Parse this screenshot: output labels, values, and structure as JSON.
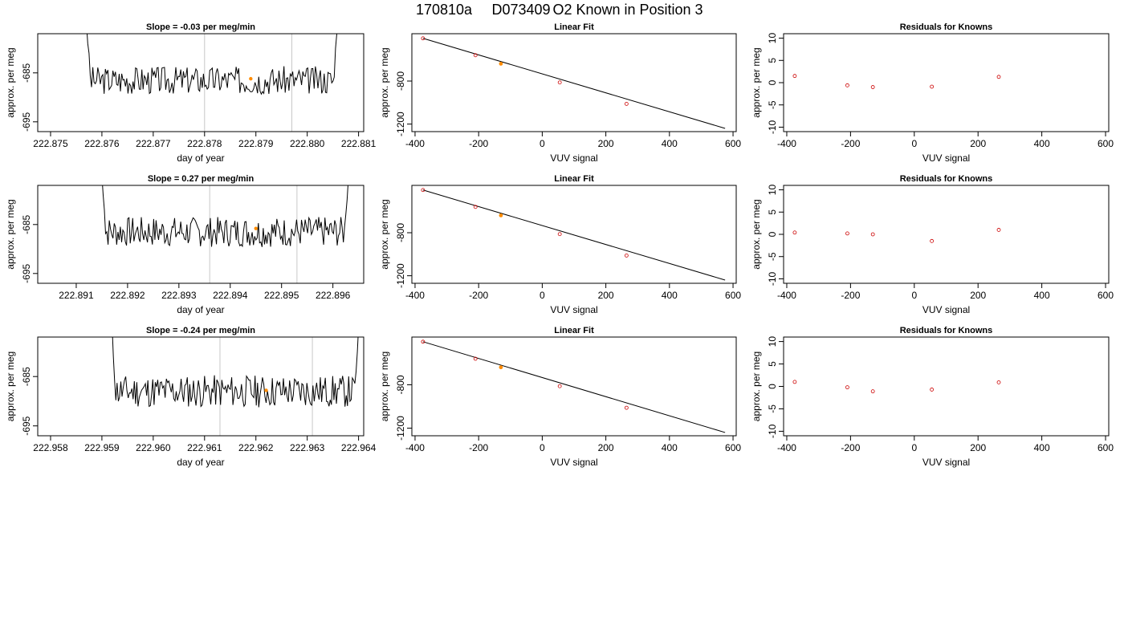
{
  "figure": {
    "title_run": "170810a",
    "title_id": "D073409",
    "title_desc": "O2 Known in Position  3"
  },
  "colors": {
    "trace": "#000000",
    "vline": "#c8c8c8",
    "known_point": "#cc0000",
    "highlight_point": "#ff8c00",
    "frame": "#000000"
  },
  "chart_data": [
    {
      "type": "line",
      "title": "Slope =  -0.03  per meg/min",
      "xlabel": "day of year",
      "ylabel": "approx. per meg",
      "xlim": [
        222.87475,
        222.8811
      ],
      "ylim": [
        -697.0,
        -677.0
      ],
      "x_ticks": [
        "222.875",
        "222.876",
        "222.877",
        "222.878",
        "222.879",
        "222.880",
        "222.881"
      ],
      "x_tick_values": [
        222.875,
        222.876,
        222.877,
        222.878,
        222.879,
        222.88,
        222.881
      ],
      "y_ticks": [
        "-685",
        "-695"
      ],
      "y_tick_values": [
        -685,
        -695
      ],
      "vlines": [
        222.878,
        222.8797
      ],
      "trace": {
        "x_start": 222.8757,
        "x_end": 222.8806,
        "lead_in": [
          -675,
          -679,
          -681
        ],
        "lead_out": [
          -680,
          -677,
          -675
        ],
        "amplitude": 1.3,
        "level": -686.5,
        "seed": 3
      },
      "marker": {
        "x": 222.8789,
        "y": -686.2
      }
    },
    {
      "type": "scatter",
      "title": "Linear Fit",
      "xlabel": "VUV signal",
      "ylabel": "approx. per meg",
      "xlim": [
        -410,
        610
      ],
      "ylim": [
        -1270,
        -360
      ],
      "x_ticks": [
        "-400",
        "-200",
        "0",
        "200",
        "400",
        "600"
      ],
      "x_tick_values": [
        -400,
        -200,
        0,
        200,
        400,
        600
      ],
      "y_ticks": [
        "-800",
        "-1200"
      ],
      "y_tick_values": [
        -800,
        -1200
      ],
      "points": [
        {
          "x": -375,
          "y": -403
        },
        {
          "x": -210,
          "y": -560
        },
        {
          "x": -130,
          "y": -639
        },
        {
          "x": 55,
          "y": -813
        },
        {
          "x": 265,
          "y": -1012
        }
      ],
      "highlight_index": 2,
      "fit_line": {
        "x": [
          -375,
          575
        ],
        "y": [
          -403,
          -1240
        ]
      }
    },
    {
      "type": "scatter",
      "title": "Residuals for Knowns",
      "xlabel": "VUV signal",
      "ylabel": "approx. per meg",
      "xlim": [
        -410,
        610
      ],
      "ylim": [
        -11,
        11
      ],
      "x_ticks": [
        "-400",
        "-200",
        "0",
        "200",
        "400",
        "600"
      ],
      "x_tick_values": [
        -400,
        -200,
        0,
        200,
        400,
        600
      ],
      "y_ticks": [
        "-10",
        "-5",
        "0",
        "5",
        "10"
      ],
      "y_tick_values": [
        -10,
        -5,
        0,
        5,
        10
      ],
      "points": [
        {
          "x": -375,
          "y": 1.5
        },
        {
          "x": -210,
          "y": -0.6
        },
        {
          "x": -130,
          "y": -1.0
        },
        {
          "x": 55,
          "y": -0.9
        },
        {
          "x": 265,
          "y": 1.3
        }
      ]
    },
    {
      "type": "line",
      "title": "Slope =  0.27  per meg/min",
      "xlabel": "day of year",
      "ylabel": "approx. per meg",
      "xlim": [
        222.89025,
        222.8966
      ],
      "ylim": [
        -697.0,
        -677.0
      ],
      "x_ticks": [
        "222.891",
        "222.892",
        "222.893",
        "222.894",
        "222.895",
        "222.896"
      ],
      "x_tick_values": [
        222.891,
        222.892,
        222.893,
        222.894,
        222.895,
        222.896
      ],
      "y_ticks": [
        "-685",
        "-695"
      ],
      "y_tick_values": [
        -685,
        -695
      ],
      "vlines": [
        222.8936,
        222.8953
      ],
      "trace": {
        "x_start": 222.8915,
        "x_end": 222.8963,
        "lead_in": [
          -675,
          -679,
          -682
        ],
        "lead_out": [
          -683,
          -680,
          -676
        ],
        "amplitude": 1.4,
        "level": -686.5,
        "seed": 7
      },
      "marker": {
        "x": 222.8945,
        "y": -685.8
      }
    },
    {
      "type": "scatter",
      "title": "Linear Fit",
      "xlabel": "VUV signal",
      "ylabel": "approx. per meg",
      "xlim": [
        -410,
        610
      ],
      "ylim": [
        -1270,
        -360
      ],
      "x_ticks": [
        "-400",
        "-200",
        "0",
        "200",
        "400",
        "600"
      ],
      "x_tick_values": [
        -400,
        -200,
        0,
        200,
        400,
        600
      ],
      "y_ticks": [
        "-800",
        "-1200"
      ],
      "y_tick_values": [
        -800,
        -1200
      ],
      "points": [
        {
          "x": -375,
          "y": -403
        },
        {
          "x": -210,
          "y": -560
        },
        {
          "x": -130,
          "y": -639
        },
        {
          "x": 55,
          "y": -813
        },
        {
          "x": 265,
          "y": -1012
        }
      ],
      "highlight_index": 2,
      "fit_line": {
        "x": [
          -375,
          575
        ],
        "y": [
          -403,
          -1240
        ]
      }
    },
    {
      "type": "scatter",
      "title": "Residuals for Knowns",
      "xlabel": "VUV signal",
      "ylabel": "approx. per meg",
      "xlim": [
        -410,
        610
      ],
      "ylim": [
        -11,
        11
      ],
      "x_ticks": [
        "-400",
        "-200",
        "0",
        "200",
        "400",
        "600"
      ],
      "x_tick_values": [
        -400,
        -200,
        0,
        200,
        400,
        600
      ],
      "y_ticks": [
        "-10",
        "-5",
        "0",
        "5",
        "10"
      ],
      "y_tick_values": [
        -10,
        -5,
        0,
        5,
        10
      ],
      "points": [
        {
          "x": -375,
          "y": 0.4
        },
        {
          "x": -210,
          "y": 0.2
        },
        {
          "x": -130,
          "y": 0.0
        },
        {
          "x": 55,
          "y": -1.5
        },
        {
          "x": 265,
          "y": 1.0
        }
      ]
    },
    {
      "type": "line",
      "title": "Slope =  -0.24  per meg/min",
      "xlabel": "day of year",
      "ylabel": "approx. per meg",
      "xlim": [
        222.95775,
        222.9641
      ],
      "ylim": [
        -697.0,
        -677.0
      ],
      "x_ticks": [
        "222.958",
        "222.959",
        "222.960",
        "222.961",
        "222.962",
        "222.963",
        "222.964"
      ],
      "x_tick_values": [
        222.958,
        222.959,
        222.96,
        222.961,
        222.962,
        222.963,
        222.964
      ],
      "y_ticks": [
        "-685",
        "-695"
      ],
      "y_tick_values": [
        -685,
        -695
      ],
      "vlines": [
        222.9613,
        222.9631
      ],
      "trace": {
        "x_start": 222.9592,
        "x_end": 222.964,
        "lead_in": [
          -675,
          -681,
          -686
        ],
        "lead_out": [
          -684,
          -680,
          -675
        ],
        "amplitude": 1.5,
        "level": -688.0,
        "seed": 11
      },
      "marker": {
        "x": 222.9622,
        "y": -687.8
      }
    },
    {
      "type": "scatter",
      "title": "Linear Fit",
      "xlabel": "VUV signal",
      "ylabel": "approx. per meg",
      "xlim": [
        -410,
        610
      ],
      "ylim": [
        -1270,
        -360
      ],
      "x_ticks": [
        "-400",
        "-200",
        "0",
        "200",
        "400",
        "600"
      ],
      "x_tick_values": [
        -400,
        -200,
        0,
        200,
        400,
        600
      ],
      "y_ticks": [
        "-800",
        "-1200"
      ],
      "y_tick_values": [
        -800,
        -1200
      ],
      "points": [
        {
          "x": -375,
          "y": -403
        },
        {
          "x": -210,
          "y": -560
        },
        {
          "x": -130,
          "y": -639
        },
        {
          "x": 55,
          "y": -813
        },
        {
          "x": 265,
          "y": -1012
        }
      ],
      "highlight_index": 2,
      "fit_line": {
        "x": [
          -375,
          575
        ],
        "y": [
          -403,
          -1240
        ]
      }
    },
    {
      "type": "scatter",
      "title": "Residuals for Knowns",
      "xlabel": "VUV signal",
      "ylabel": "approx. per meg",
      "xlim": [
        -410,
        610
      ],
      "ylim": [
        -11,
        11
      ],
      "x_ticks": [
        "-400",
        "-200",
        "0",
        "200",
        "400",
        "600"
      ],
      "x_tick_values": [
        -400,
        -200,
        0,
        200,
        400,
        600
      ],
      "y_ticks": [
        "-10",
        "-5",
        "0",
        "5",
        "10"
      ],
      "y_tick_values": [
        -10,
        -5,
        0,
        5,
        10
      ],
      "points": [
        {
          "x": -375,
          "y": 1.0
        },
        {
          "x": -210,
          "y": -0.2
        },
        {
          "x": -130,
          "y": -1.1
        },
        {
          "x": 55,
          "y": -0.7
        },
        {
          "x": 265,
          "y": 0.9
        }
      ]
    }
  ]
}
